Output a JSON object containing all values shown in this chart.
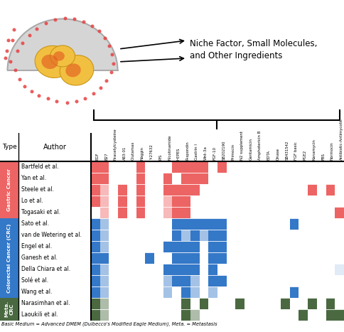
{
  "columns": [
    "EGF",
    "B27",
    "N-acetylcysteine",
    "A83-01",
    "Glutamax",
    "Noggin",
    "Y-27632",
    "P/S",
    "Nicotinamide",
    "HEPES",
    "R-spondin",
    "Gastrin I",
    "Wnt-3a",
    "FGF-10",
    "SB202190",
    "Primocin",
    "N2 supplement",
    "Gentamicin",
    "Amphotericin B",
    "EDTA",
    "Dnase",
    "SB431542",
    "FGF basic",
    "PGE2",
    "Kanamycin",
    "FBS",
    "Normocin",
    "Antibiotic-Antimycotic"
  ],
  "authors": [
    "Bartfeld et al.",
    "Yan et al.",
    "Steele et al.",
    "Lo et al.",
    "Togasaki et al.",
    "Sato et al.",
    "van de Wetering et al.",
    "Engel et al.",
    "Ganesh et al.",
    "Della Chiara et al.",
    "Solé et al.",
    "Wang et al.",
    "Narasimhan et al.",
    "Laoukili et al."
  ],
  "types": [
    "Gastric Cancer",
    "Gastric Cancer",
    "Gastric Cancer",
    "Gastric Cancer",
    "Gastric Cancer",
    "Colorectal Cancer (CRC)",
    "Colorectal Cancer (CRC)",
    "Colorectal Cancer (CRC)",
    "Colorectal Cancer (CRC)",
    "Colorectal Cancer (CRC)",
    "Colorectal Cancer (CRC)",
    "Colorectal Cancer (CRC)",
    "Meta. CRC",
    "Meta. CRC"
  ],
  "type_colors": {
    "Gastric Cancer": [
      237,
      100,
      100
    ],
    "Colorectal Cancer (CRC)": [
      52,
      120,
      200
    ],
    "Meta. CRC": [
      74,
      105,
      65
    ]
  },
  "matrix": [
    [
      1,
      1,
      0,
      0,
      0,
      1,
      0,
      0,
      0,
      1,
      1,
      1,
      1,
      0,
      1,
      0,
      0,
      0,
      0,
      0,
      0,
      0,
      0,
      0,
      0,
      0,
      0,
      0
    ],
    [
      1,
      1,
      0,
      0,
      0,
      1,
      0,
      0,
      1,
      0,
      1,
      1,
      1,
      0,
      0,
      0,
      0,
      0,
      0,
      0,
      0,
      0,
      0,
      0,
      0,
      0,
      0,
      0
    ],
    [
      1,
      0.45,
      0,
      1,
      0,
      1,
      0,
      0,
      1,
      1,
      1,
      1,
      0,
      0,
      0,
      0,
      0,
      0,
      0,
      0,
      0,
      0,
      0,
      0,
      1,
      0,
      1,
      0
    ],
    [
      1,
      0.45,
      0,
      1,
      0,
      1,
      0,
      0,
      0.45,
      1,
      1,
      0,
      0,
      0,
      0,
      0,
      0,
      0,
      0,
      0,
      0,
      0,
      0,
      0,
      0,
      0,
      0,
      0
    ],
    [
      0,
      0.45,
      0,
      1,
      0,
      1,
      0,
      0,
      0.45,
      1,
      1,
      0,
      0,
      0,
      0,
      0,
      0,
      0,
      0,
      0,
      0,
      0,
      0,
      0,
      0,
      0,
      0,
      1
    ],
    [
      1,
      0.45,
      0,
      0,
      0,
      0,
      0,
      0,
      0,
      1,
      1,
      1,
      1,
      1,
      1,
      0,
      0,
      0,
      0,
      0,
      0,
      0,
      1,
      0,
      0,
      0,
      0,
      0
    ],
    [
      1,
      0.45,
      0,
      0,
      0,
      0,
      0,
      0,
      0,
      1,
      0.45,
      1,
      0.45,
      1,
      1,
      0,
      0,
      0,
      0,
      0,
      0,
      0,
      0,
      0,
      0,
      0,
      0,
      0
    ],
    [
      1,
      0.45,
      0,
      0,
      0,
      0,
      0,
      0,
      1,
      1,
      1,
      1,
      0,
      1,
      1,
      0,
      0,
      0,
      0,
      0,
      0,
      0,
      0,
      0,
      0,
      0,
      0,
      0
    ],
    [
      1,
      1,
      0,
      0,
      0,
      0,
      1,
      0,
      0,
      1,
      1,
      1,
      0,
      1,
      1,
      0,
      0,
      0,
      0,
      0,
      0,
      0,
      0,
      0,
      0,
      0,
      0,
      0
    ],
    [
      1,
      0.45,
      0,
      0,
      0,
      0,
      0,
      0,
      1,
      1,
      1,
      1,
      0,
      1,
      0,
      0,
      0,
      0,
      0,
      0,
      0,
      0,
      0,
      0,
      0,
      0,
      0,
      0.15
    ],
    [
      1,
      0.45,
      0,
      0,
      0,
      0,
      0,
      0,
      0.45,
      1,
      1,
      0.45,
      0,
      1,
      1,
      0,
      0,
      0,
      0,
      0,
      0,
      0,
      0,
      0,
      0,
      0,
      0,
      0
    ],
    [
      1,
      0.45,
      0,
      0,
      0,
      0,
      0,
      0,
      0.45,
      0,
      1,
      0.45,
      0,
      0.45,
      0,
      0,
      0,
      0,
      0,
      0,
      0,
      0,
      1,
      0,
      0,
      0,
      0,
      0
    ],
    [
      1,
      0.45,
      0,
      0,
      0,
      0,
      0,
      0,
      0,
      0,
      1,
      0,
      1,
      0,
      0,
      0,
      1,
      0,
      0,
      0,
      0,
      1,
      0,
      0,
      1,
      0,
      1,
      0
    ],
    [
      1,
      0.45,
      0,
      0,
      0,
      0,
      0,
      0,
      0,
      0,
      1,
      0.45,
      0,
      0,
      0,
      0,
      0,
      0,
      0,
      0,
      0,
      0,
      0,
      1,
      0,
      0,
      1,
      1
    ]
  ],
  "footnote": "Basic Medium = Advanced DMEM (Dulbecco's Modified Eagle Medium), Meta. = Metastasis",
  "type_sidebar_labels": {
    "Gastric Cancer": "Gastric Cancer",
    "Colorectal Cancer (CRC)": "Colorectal Cancer (CRC)",
    "Meta. CRC": "Meta.\nCRC"
  }
}
